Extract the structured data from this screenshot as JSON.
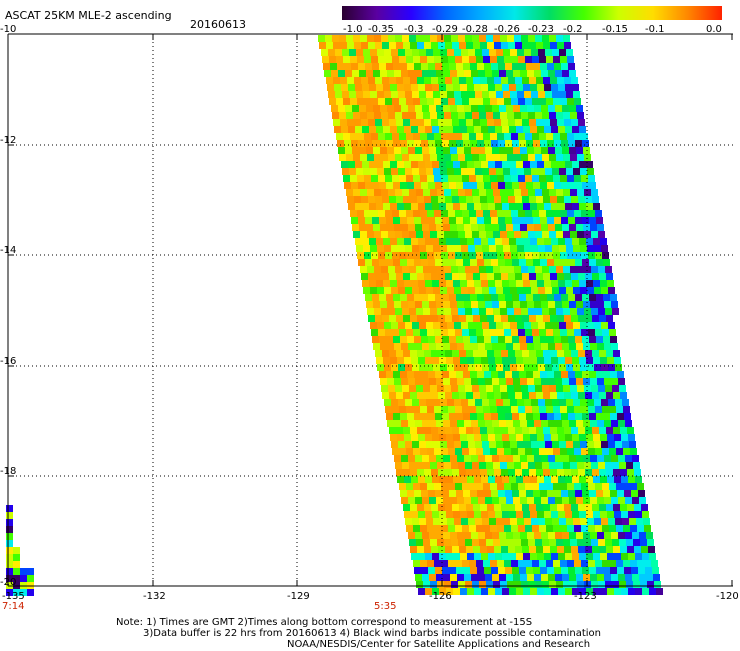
{
  "header": {
    "title": "ASCAT 25KM MLE-2 ascending",
    "date": "20160613"
  },
  "colorbar": {
    "labels": [
      "-1.0",
      "-0.35",
      "-0.3",
      "-0.29",
      "-0.28",
      "-0.26",
      "-0.23",
      "-0.2",
      "-0.15",
      "-0.1",
      "0.0"
    ],
    "colors": [
      "#2a0030",
      "#5a00a0",
      "#2a00ff",
      "#0066ff",
      "#00aaff",
      "#00e8e8",
      "#00dd66",
      "#44ff00",
      "#ccff00",
      "#ffdd00",
      "#ff8800",
      "#ff2200"
    ]
  },
  "axes": {
    "y_labels": [
      "-10",
      "-12",
      "-14",
      "-16",
      "-18",
      "-20"
    ],
    "x_labels": [
      "-135",
      "-132",
      "-129",
      "-126",
      "-123",
      "-120"
    ]
  },
  "times": {
    "left": "7:14",
    "center": "5:35"
  },
  "notes": {
    "line1": "Note: 1) Times are GMT 2)Times along bottom correspond to measurement at -15S",
    "line2": "3)Data buffer is 22 hrs from 20160613 4) Black wind barbs indicate possible contamination",
    "line3": "NOAA/NESDIS/Center for Satellite Applications and Research"
  }
}
